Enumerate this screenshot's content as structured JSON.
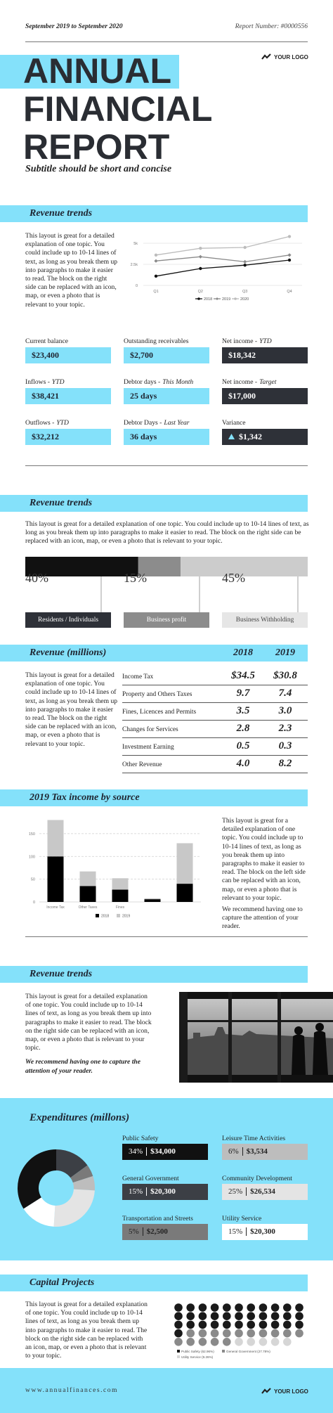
{
  "header": {
    "date_range": "September 2019 to September 2020",
    "report_number": "Report Number: #0000556",
    "logo": "YOUR LOGO"
  },
  "title": {
    "lines": [
      "ANNUAL",
      "FINANCIAL",
      "REPORT"
    ],
    "subtitle": "Subtitle should be short and concise"
  },
  "revenue_trends": {
    "heading": "Revenue trends",
    "body": "This layout is great for a detailed explanation of one topic. You could include up to 10-14 lines of text, as long as you break them up into paragraphs to make it easier to read. The block on the right side can be replaced with an icon, map, or even a photo that is relevant to your topic."
  },
  "kpis": [
    {
      "label": "Current balance",
      "value": "$23,400",
      "color": "#84e1fa"
    },
    {
      "label": "Outstanding receivables",
      "value": "$2,700",
      "color": "#84e1fa"
    },
    {
      "label": "Net income -",
      "qualifier": "YTD",
      "value": "$18,342",
      "color": "#2e3138"
    },
    {
      "label": "Inflows -",
      "qualifier": "YTD",
      "value": "$38,421",
      "color": "#84e1fa"
    },
    {
      "label": "Debtor days -",
      "qualifier": "This Month",
      "value": "25 days",
      "color": "#84e1fa"
    },
    {
      "label": "Net income -",
      "qualifier": "Target",
      "value": "$17,000",
      "color": "#2e3138"
    },
    {
      "label": "Outflows -",
      "qualifier": "YTD",
      "value": "$32,212",
      "color": "#84e1fa"
    },
    {
      "label": "Debtor Days -",
      "qualifier": "Last Year",
      "value": "36 days",
      "color": "#84e1fa"
    },
    {
      "label": "Variance",
      "value": "$1,342",
      "color": "#2e3138"
    }
  ],
  "revenue_split": {
    "heading": "Revenue trends",
    "body": "This layout is great for a detailed explanation of one topic. You could include up to 10-14 lines of text, as long as you break them up into paragraphs to make it easier to read. The block on the right side can be replaced with an icon, map, or even a photo that is relevant to your topic."
  },
  "revenue_table": {
    "heading": "Revenue (millions)",
    "columns": [
      "2018",
      "2019"
    ],
    "body": "This layout is great for a detailed explanation of one topic. You could include up to 10-14 lines of text, as long as you break them up into paragraphs to make it easier to read. The block on the right side can be replaced with an icon, map, or even a photo that is relevant to your topic.",
    "rows": [
      [
        "Income Tax",
        "$34.5",
        "$30.8"
      ],
      [
        "Property and Others Taxes",
        "9.7",
        "7.4"
      ],
      [
        "Fines, Licences and Permits",
        "3.5",
        "3.0"
      ],
      [
        "Changes for Services",
        "2.8",
        "2.3"
      ],
      [
        "Investment Earning",
        "0.5",
        "0.3"
      ],
      [
        "Other Revenue",
        "4.0",
        "8.2"
      ]
    ]
  },
  "tax_income": {
    "heading": "2019 Tax income by source",
    "body": [
      "This layout is great for a detailed explanation of one topic. You could include up to 10-14 lines of text, as long as you break them up into paragraphs to make it easier to read. The block on the left side can be replaced with an icon, map, or even a photo that is relevant to your topic.",
      "We recommend having one to capture the attention of your reader."
    ]
  },
  "photo_section": {
    "heading": "Revenue trends",
    "body": "This layout is great for a detailed explanation of one topic. You could include up to 10-14 lines of text, as long as you break them up into paragraphs to make it easier to read. The block on the right side can be replaced with an icon, map, or even a photo that is relevant to your topic.",
    "emphasis": "We recommend having one to capture the attention of your reader."
  },
  "expenditures": {
    "heading": "Expenditures (millons)",
    "items": [
      {
        "name": "Public Safety",
        "percent": 34,
        "percent_label": "34%",
        "amount": "$34,000",
        "color": "#111111",
        "text_color": "#ffffff"
      },
      {
        "name": "General Government",
        "percent": 15,
        "percent_label": "15%",
        "amount": "$20,300",
        "color": "#3c3f45",
        "text_color": "#ffffff"
      },
      {
        "name": "Transportation and Streets",
        "percent": 5,
        "percent_label": "5%",
        "amount": "$2,500",
        "color": "#7a7a7a",
        "text_color": "#222222"
      },
      {
        "name": "Leisure Time Activities",
        "percent": 6,
        "percent_label": "6%",
        "amount": "$3,534",
        "color": "#bdbdbd",
        "text_color": "#222222"
      },
      {
        "name": "Community Development",
        "percent": 25,
        "percent_label": "25%",
        "amount": "$26,534",
        "color": "#e4e4e4",
        "text_color": "#222222"
      },
      {
        "name": "Utility Service",
        "percent": 15,
        "percent_label": "15%",
        "amount": "$20,300",
        "color": "#ffffff",
        "text_color": "#222222"
      }
    ]
  },
  "capital_projects": {
    "heading": "Capital Projects",
    "body": "This layout is great for a detailed explanation of one topic. You could include up to 10-14 lines of text, as long as you break them up into paragraphs to make it easier to read. The block on the right side can be replaced with an icon, map, or even a photo that is relevant to your topic."
  },
  "footer": {
    "url": "www.annualfinances.com",
    "logo": "YOUR LOGO"
  },
  "chart_data": [
    {
      "type": "line",
      "categories": [
        "Q1",
        "Q2",
        "Q3",
        "Q4"
      ],
      "series": [
        {
          "name": "2018",
          "color": "#111111",
          "marker": "circle",
          "values": [
            1100,
            2000,
            2400,
            3000
          ]
        },
        {
          "name": "2019",
          "color": "#8a8a8a",
          "marker": "diamond",
          "values": [
            2900,
            3400,
            2800,
            3600
          ]
        },
        {
          "name": "2020",
          "color": "#bcbcbc",
          "marker": "circle",
          "values": [
            3600,
            4400,
            4500,
            5800
          ]
        }
      ],
      "ylim": [
        0,
        6000
      ],
      "yticks": [
        0,
        {
          "value": 2500,
          "label": "2.5k"
        },
        {
          "value": 5000,
          "label": "5k"
        }
      ],
      "grid": true
    },
    {
      "type": "split-bar",
      "categories": [
        "Residents / Individuals",
        "Business profit",
        "Business Withholding"
      ],
      "values": [
        40,
        15,
        45
      ],
      "value_labels": [
        "40%",
        "15%",
        "45%"
      ],
      "colors": [
        "#111111",
        "#8c8c8c",
        "#cccccc"
      ],
      "label_colors": [
        "#2e3138",
        "#8c8c8c",
        "#e6e6e6"
      ],
      "xlim": [
        0,
        100
      ]
    },
    {
      "type": "stacked-bar",
      "categories": [
        "Income Tax",
        "Other Taxes",
        "Fines",
        null,
        null
      ],
      "series": [
        {
          "name": "2018",
          "color": "#000000",
          "values": [
            100,
            35,
            27,
            6,
            40
          ]
        },
        {
          "name": "2019",
          "color": "#c8c8c8",
          "values": [
            80,
            32,
            25,
            2,
            89
          ]
        }
      ],
      "ylim": [
        0,
        190
      ],
      "yticks": [
        0,
        50,
        100,
        150
      ],
      "grid": true
    },
    {
      "type": "dot-matrix",
      "series": [
        {
          "name": "Public Safety (62.96%)",
          "value": 62.96,
          "color": "#1a1a1a"
        },
        {
          "name": "General Government (27.78%)",
          "value": 27.78,
          "color": "#8a8a8a"
        },
        {
          "name": "Utility Service (9.26%)",
          "value": 9.26,
          "color": "#d6d6d6"
        }
      ]
    }
  ]
}
